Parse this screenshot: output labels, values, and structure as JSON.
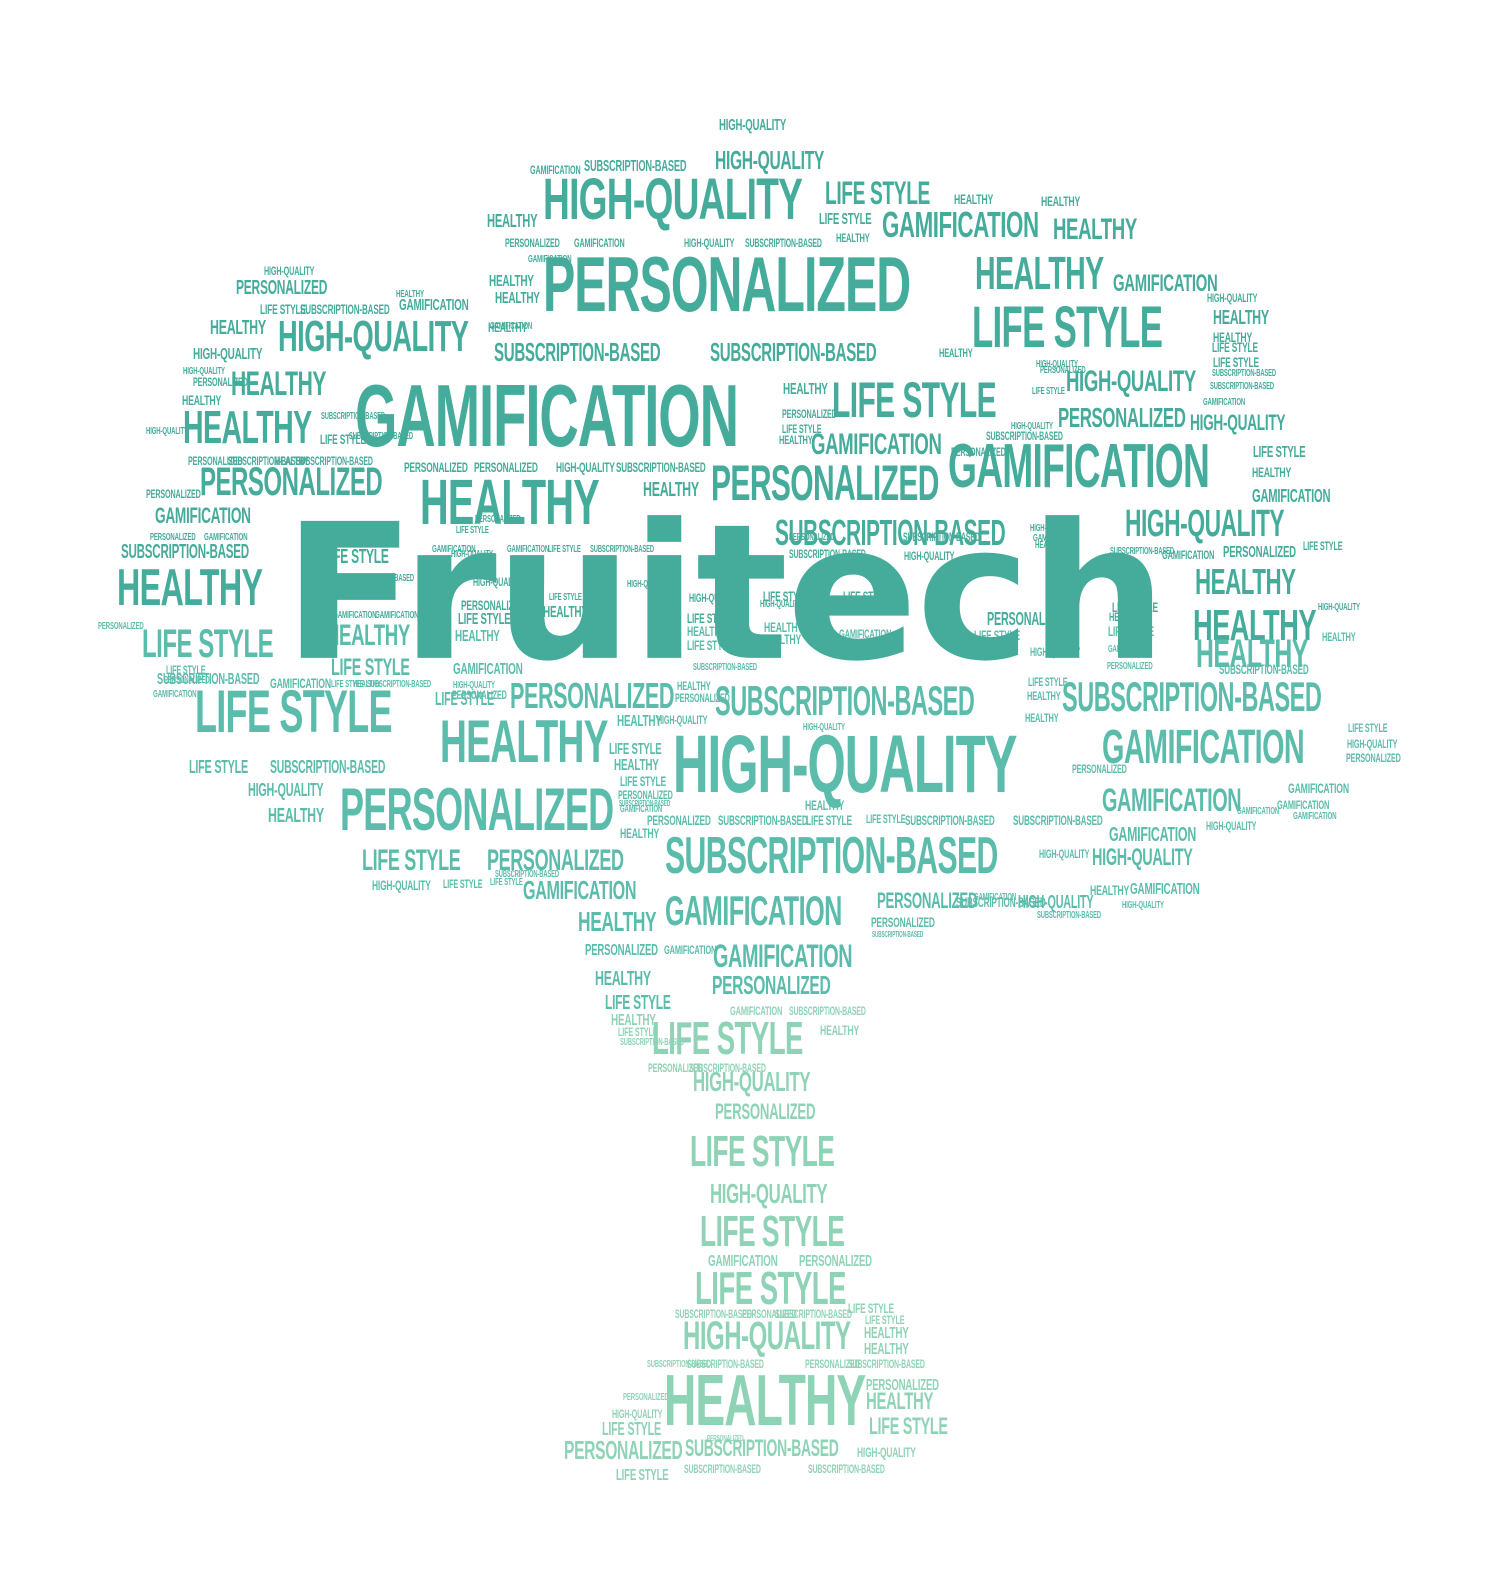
{
  "title": "Fruitech",
  "palette": {
    "dark": "#45ab9a",
    "mid": "#5bbcab",
    "light": "#8fd3b6"
  },
  "words": {
    "personalized": "PERSONALIZED",
    "gamification": "GAMIFICATION",
    "high_quality": "HIGH-QUALITY",
    "healthy": "HEALTHY",
    "life_style": "LIFE STYLE",
    "subscription_based": "SUBSCRIPTION-BASED"
  }
}
